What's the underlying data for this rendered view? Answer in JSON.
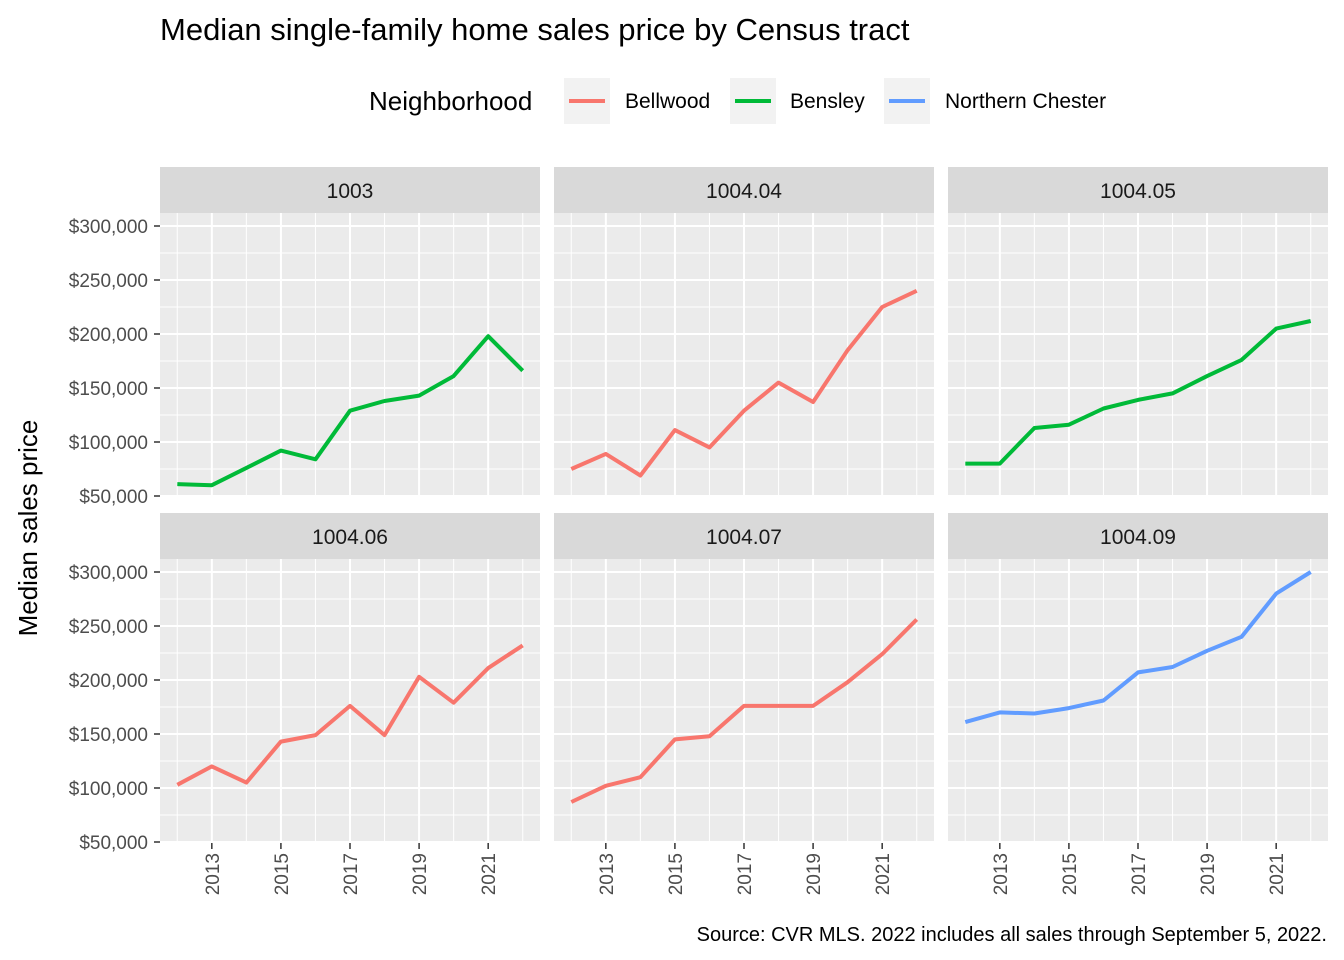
{
  "chart_data": {
    "type": "line",
    "title": "Median single-family home sales price by Census tract",
    "ylabel": "Median sales price",
    "xlabel": "",
    "caption": "Source: CVR MLS. 2022 includes all sales through September 5, 2022.",
    "legend": {
      "title": "Neighborhood",
      "position": "top",
      "entries": [
        {
          "name": "Bellwood",
          "color": "#F8766D"
        },
        {
          "name": "Bensley",
          "color": "#00BA38"
        },
        {
          "name": "Northern Chester",
          "color": "#619CFF"
        }
      ]
    },
    "ylim": [
      50000,
      300000
    ],
    "y_ticks": [
      50000,
      100000,
      150000,
      200000,
      250000,
      300000
    ],
    "y_tick_labels": [
      "$50,000",
      "$100,000",
      "$150,000",
      "$200,000",
      "$250,000",
      "$300,000"
    ],
    "xlim": [
      2012,
      2022
    ],
    "x_ticks": [
      2013,
      2015,
      2017,
      2019,
      2021
    ],
    "x_tick_labels": [
      "2013",
      "2015",
      "2017",
      "2019",
      "2021"
    ],
    "grid": true,
    "x": [
      2012,
      2013,
      2014,
      2015,
      2016,
      2017,
      2018,
      2019,
      2020,
      2021,
      2022
    ],
    "facets": [
      {
        "tract": "1003",
        "neighborhood": "Bensley",
        "color": "#00BA38",
        "values": [
          61000,
          60000,
          76000,
          92000,
          84000,
          129000,
          138000,
          143000,
          161000,
          198000,
          166000
        ]
      },
      {
        "tract": "1004.04",
        "neighborhood": "Bellwood",
        "color": "#F8766D",
        "values": [
          75000,
          89000,
          69000,
          111000,
          95000,
          129000,
          155000,
          137000,
          185000,
          225000,
          240000
        ]
      },
      {
        "tract": "1004.05",
        "neighborhood": "Bensley",
        "color": "#00BA38",
        "values": [
          80000,
          80000,
          113000,
          116000,
          131000,
          139000,
          145000,
          161000,
          176000,
          205000,
          212000
        ]
      },
      {
        "tract": "1004.06",
        "neighborhood": "Bellwood",
        "color": "#F8766D",
        "values": [
          103000,
          120000,
          105000,
          143000,
          149000,
          176000,
          149000,
          203000,
          179000,
          211000,
          232000
        ]
      },
      {
        "tract": "1004.07",
        "neighborhood": "Bellwood",
        "color": "#F8766D",
        "values": [
          87000,
          102000,
          110000,
          145000,
          148000,
          176000,
          176000,
          176000,
          198000,
          224000,
          256000
        ]
      },
      {
        "tract": "1004.09",
        "neighborhood": "Northern Chester",
        "color": "#619CFF",
        "values": [
          161000,
          170000,
          169000,
          174000,
          181000,
          207000,
          212000,
          227000,
          240000,
          280000,
          300000
        ]
      }
    ]
  },
  "colors": {
    "panel_background": "#EBEBEB",
    "grid_major": "#FFFFFF",
    "strip_background": "#D9D9D9",
    "legend_key_background": "#F2F2F2"
  }
}
